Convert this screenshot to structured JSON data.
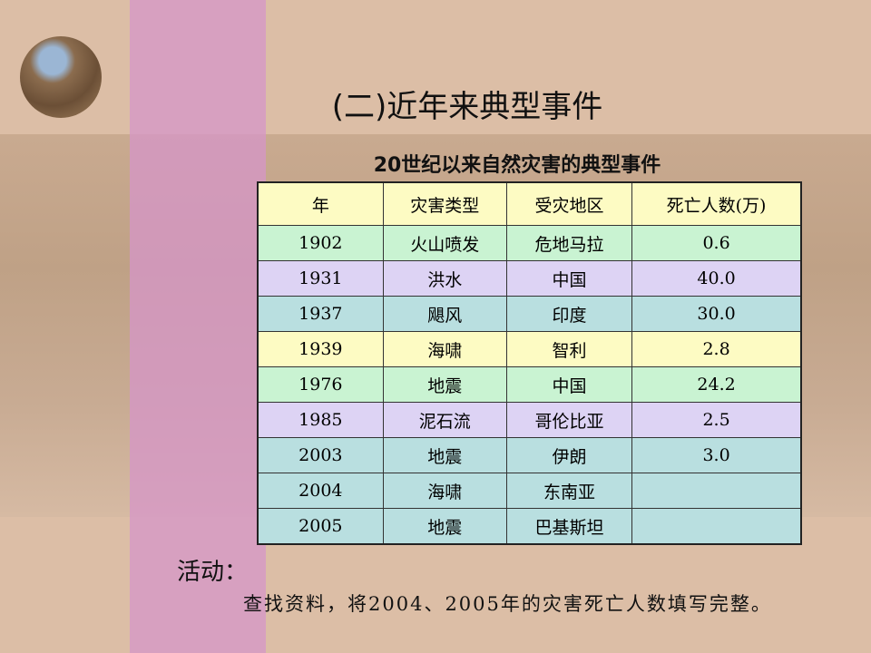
{
  "title": "(二)近年来典型事件",
  "table": {
    "caption": "20世纪以来自然灾害的典型事件",
    "header": [
      "年",
      "灾害类型",
      "受灾地区",
      "死亡人数(万)"
    ],
    "rows": [
      [
        "1902",
        "火山喷发",
        "危地马拉",
        "0.6"
      ],
      [
        "1931",
        "洪水",
        "中国",
        "40.0"
      ],
      [
        "1937",
        "飓风",
        "印度",
        "30.0"
      ],
      [
        "1939",
        "海啸",
        "智利",
        "2.8"
      ],
      [
        "1976",
        "地震",
        "中国",
        "24.2"
      ],
      [
        "1985",
        "泥石流",
        "哥伦比亚",
        "2.5"
      ],
      [
        "2003",
        "地震",
        "伊朗",
        "3.0"
      ],
      [
        "2004",
        "海啸",
        "东南亚",
        null
      ],
      [
        "2005",
        "地震",
        "巴基斯坦",
        null
      ]
    ]
  },
  "activity": {
    "label": "活动：",
    "text": "查找资料，将2004、2005年的灾害死亡人数填写完整。"
  }
}
